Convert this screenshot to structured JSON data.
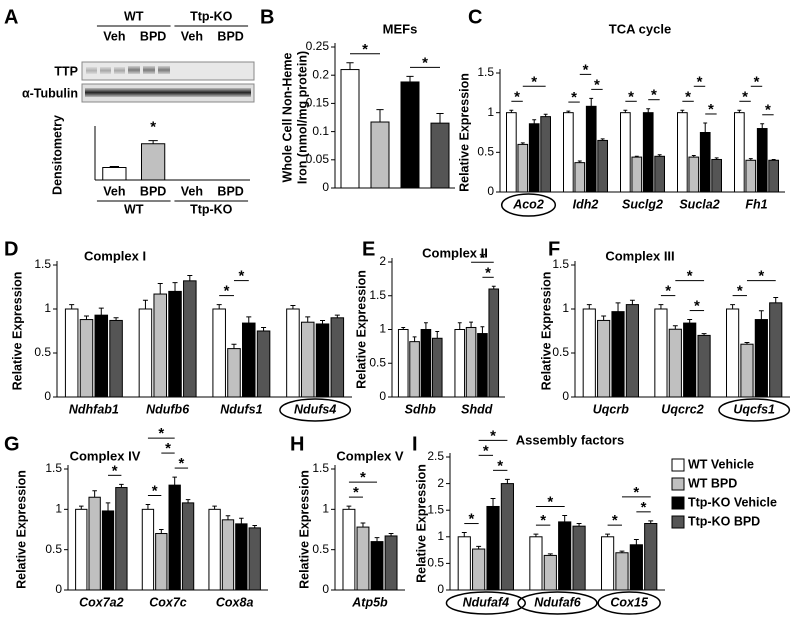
{
  "legend": {
    "entries": [
      {
        "name": "WT Vehicle",
        "color": "#ffffff"
      },
      {
        "name": "WT BPD",
        "color": "#c0c0c0"
      },
      {
        "name": "Ttp-KO Vehicle",
        "color": "#000000"
      },
      {
        "name": "Ttp-KO BPD",
        "color": "#555555"
      }
    ]
  },
  "significance_label": "*",
  "chart_data": [
    {
      "panel": "A",
      "type": "bar",
      "ylabel": "Densitometry",
      "blot_rows": [
        "TTP",
        "α-Tubulin"
      ],
      "groups": [
        "WT",
        "Ttp-KO"
      ],
      "categories": [
        "Veh",
        "BPD",
        "Veh",
        "BPD"
      ],
      "values": [
        1.0,
        2.9,
        0,
        0
      ],
      "errors": [
        0.08,
        0.25,
        0,
        0
      ],
      "ylim": [
        0,
        4
      ],
      "significance": [
        [
          1
        ]
      ]
    },
    {
      "panel": "B",
      "type": "bar",
      "title": "MEFs",
      "ylabel": [
        "Whole Cell Non-Heme",
        "Iron (nmol/mg protein)"
      ],
      "values": [
        0.21,
        0.117,
        0.188,
        0.115
      ],
      "errors": [
        0.012,
        0.022,
        0.01,
        0.017
      ],
      "ylim": [
        0,
        0.25
      ],
      "yticks": [
        0,
        0.05,
        0.1,
        0.15,
        0.2,
        0.25
      ],
      "significance": [
        [
          0,
          1
        ],
        [
          2,
          3
        ]
      ]
    },
    {
      "panel": "C",
      "type": "grouped_bar",
      "title": "TCA cycle",
      "ylabel": "Relative Expression",
      "categories": [
        "Aco2",
        "Idh2",
        "Suclg2",
        "Sucla2",
        "Fh1"
      ],
      "circled": [
        0
      ],
      "series": [
        {
          "values": [
            1.0,
            1.0,
            1.0,
            1.0,
            1.0
          ],
          "errors": [
            0.03,
            0.02,
            0.03,
            0.03,
            0.03
          ]
        },
        {
          "values": [
            0.6,
            0.37,
            0.44,
            0.44,
            0.4
          ],
          "errors": [
            0.02,
            0.02,
            0.01,
            0.02,
            0.02
          ]
        },
        {
          "values": [
            0.86,
            1.08,
            1.0,
            0.75,
            0.8
          ],
          "errors": [
            0.05,
            0.1,
            0.05,
            0.12,
            0.06
          ]
        },
        {
          "values": [
            0.95,
            0.65,
            0.45,
            0.41,
            0.4
          ],
          "errors": [
            0.03,
            0.02,
            0.02,
            0.02,
            0.01
          ]
        }
      ],
      "ylim": [
        0,
        1.5
      ],
      "yticks": [
        0,
        0.5,
        1,
        1.5
      ],
      "significance": [
        [
          0,
          0,
          1
        ],
        [
          0,
          1,
          3
        ],
        [
          1,
          0,
          1
        ],
        [
          1,
          2,
          3
        ],
        [
          1,
          1,
          2
        ],
        [
          2,
          0,
          1
        ],
        [
          2,
          2,
          3
        ],
        [
          3,
          0,
          1
        ],
        [
          3,
          2,
          3
        ],
        [
          3,
          1,
          2
        ],
        [
          4,
          0,
          1
        ],
        [
          4,
          2,
          3
        ],
        [
          4,
          1,
          2
        ]
      ]
    },
    {
      "panel": "D",
      "type": "grouped_bar",
      "title": "Complex I",
      "ylabel": "Relative Expression",
      "categories": [
        "Ndhfab1",
        "Ndufb6",
        "Ndufs1",
        "Ndufs4"
      ],
      "circled": [
        3
      ],
      "series": [
        {
          "values": [
            1.0,
            1.0,
            1.0,
            1.0
          ],
          "errors": [
            0.05,
            0.1,
            0.05,
            0.04
          ]
        },
        {
          "values": [
            0.88,
            1.17,
            0.55,
            0.85
          ],
          "errors": [
            0.04,
            0.12,
            0.05,
            0.06
          ]
        },
        {
          "values": [
            0.93,
            1.2,
            0.84,
            0.83
          ],
          "errors": [
            0.08,
            0.1,
            0.07,
            0.04
          ]
        },
        {
          "values": [
            0.87,
            1.32,
            0.75,
            0.9
          ],
          "errors": [
            0.03,
            0.06,
            0.04,
            0.03
          ]
        }
      ],
      "ylim": [
        0,
        1.5
      ],
      "yticks": [
        0,
        0.5,
        1,
        1.5
      ],
      "significance": [
        [
          2,
          0,
          1
        ],
        [
          2,
          1,
          2
        ]
      ]
    },
    {
      "panel": "E",
      "type": "grouped_bar",
      "title": "Complex II",
      "ylabel": "Relative Expression",
      "categories": [
        "Sdhb",
        "Shdd"
      ],
      "circled": [],
      "series": [
        {
          "values": [
            1.0,
            1.0
          ],
          "errors": [
            0.03,
            0.1
          ]
        },
        {
          "values": [
            0.82,
            1.03
          ],
          "errors": [
            0.07,
            0.08
          ]
        },
        {
          "values": [
            1.0,
            0.94
          ],
          "errors": [
            0.1,
            0.1
          ]
        },
        {
          "values": [
            0.87,
            1.6
          ],
          "errors": [
            0.1,
            0.04
          ]
        }
      ],
      "ylim": [
        0,
        2
      ],
      "yticks": [
        0,
        0.5,
        1,
        1.5,
        2
      ],
      "significance": [
        [
          1,
          2,
          3
        ],
        [
          1,
          1,
          3
        ]
      ]
    },
    {
      "panel": "F",
      "type": "grouped_bar",
      "title": "Complex III",
      "ylabel": "Relative Expression",
      "categories": [
        "Uqcrb",
        "Uqcrc2",
        "Uqcfs1"
      ],
      "circled": [
        2
      ],
      "series": [
        {
          "values": [
            1.0,
            1.0,
            1.0
          ],
          "errors": [
            0.05,
            0.05,
            0.05
          ]
        },
        {
          "values": [
            0.87,
            0.77,
            0.6
          ],
          "errors": [
            0.05,
            0.04,
            0.02
          ]
        },
        {
          "values": [
            0.97,
            0.84,
            0.88
          ],
          "errors": [
            0.1,
            0.04,
            0.1
          ]
        },
        {
          "values": [
            1.05,
            0.7,
            1.07
          ],
          "errors": [
            0.05,
            0.02,
            0.06
          ]
        }
      ],
      "ylim": [
        0,
        1.5
      ],
      "yticks": [
        0,
        0.5,
        1,
        1.5
      ],
      "significance": [
        [
          1,
          0,
          1
        ],
        [
          1,
          2,
          3
        ],
        [
          1,
          1,
          3
        ],
        [
          2,
          0,
          1
        ],
        [
          2,
          1,
          3
        ]
      ]
    },
    {
      "panel": "G",
      "type": "grouped_bar",
      "title": "Complex IV",
      "ylabel": "Relative Expression",
      "categories": [
        "Cox7a2",
        "Cox7c",
        "Cox8a"
      ],
      "circled": [],
      "series": [
        {
          "values": [
            1.0,
            1.0,
            1.0
          ],
          "errors": [
            0.04,
            0.06,
            0.04
          ]
        },
        {
          "values": [
            1.15,
            0.7,
            0.87
          ],
          "errors": [
            0.08,
            0.05,
            0.05
          ]
        },
        {
          "values": [
            0.98,
            1.3,
            0.82
          ],
          "errors": [
            0.1,
            0.1,
            0.07
          ]
        },
        {
          "values": [
            1.27,
            1.08,
            0.77
          ],
          "errors": [
            0.04,
            0.04,
            0.03
          ]
        }
      ],
      "ylim": [
        0,
        1.5
      ],
      "yticks": [
        0,
        0.5,
        1,
        1.5
      ],
      "significance": [
        [
          0,
          2,
          3
        ],
        [
          1,
          0,
          1
        ],
        [
          1,
          2,
          3
        ],
        [
          1,
          1,
          2
        ],
        [
          1,
          0,
          2
        ]
      ]
    },
    {
      "panel": "H",
      "type": "grouped_bar",
      "title": "Complex V",
      "ylabel": "Relative Expression",
      "categories": [
        "Atp5b"
      ],
      "circled": [],
      "series": [
        {
          "values": [
            1.0
          ],
          "errors": [
            0.04
          ]
        },
        {
          "values": [
            0.78
          ],
          "errors": [
            0.05
          ]
        },
        {
          "values": [
            0.6
          ],
          "errors": [
            0.05
          ]
        },
        {
          "values": [
            0.67
          ],
          "errors": [
            0.03
          ]
        }
      ],
      "ylim": [
        0,
        1.5
      ],
      "yticks": [
        0,
        0.5,
        1,
        1.5
      ],
      "significance": [
        [
          0,
          0,
          1
        ],
        [
          0,
          0,
          2
        ]
      ]
    },
    {
      "panel": "I",
      "type": "grouped_bar",
      "title": "Assembly factors",
      "ylabel": "Relative Expression",
      "categories": [
        "Ndufaf4",
        "Ndufaf6",
        "Cox15"
      ],
      "circled": [
        0,
        1,
        2
      ],
      "series": [
        {
          "values": [
            1.0,
            1.0,
            1.0
          ],
          "errors": [
            0.08,
            0.05,
            0.05
          ]
        },
        {
          "values": [
            0.77,
            0.65,
            0.7
          ],
          "errors": [
            0.05,
            0.03,
            0.03
          ]
        },
        {
          "values": [
            1.57,
            1.28,
            0.85
          ],
          "errors": [
            0.15,
            0.12,
            0.1
          ]
        },
        {
          "values": [
            2.0,
            1.2,
            1.25
          ],
          "errors": [
            0.08,
            0.05,
            0.05
          ]
        }
      ],
      "ylim": [
        0,
        2.5
      ],
      "yticks": [
        0,
        0.5,
        1,
        1.5,
        2,
        2.5
      ],
      "significance": [
        [
          0,
          0,
          1
        ],
        [
          0,
          2,
          3
        ],
        [
          0,
          1,
          2
        ],
        [
          0,
          1,
          3
        ],
        [
          1,
          0,
          1
        ],
        [
          1,
          0,
          2
        ],
        [
          2,
          0,
          1
        ],
        [
          2,
          2,
          3
        ],
        [
          2,
          1,
          3
        ]
      ]
    }
  ]
}
